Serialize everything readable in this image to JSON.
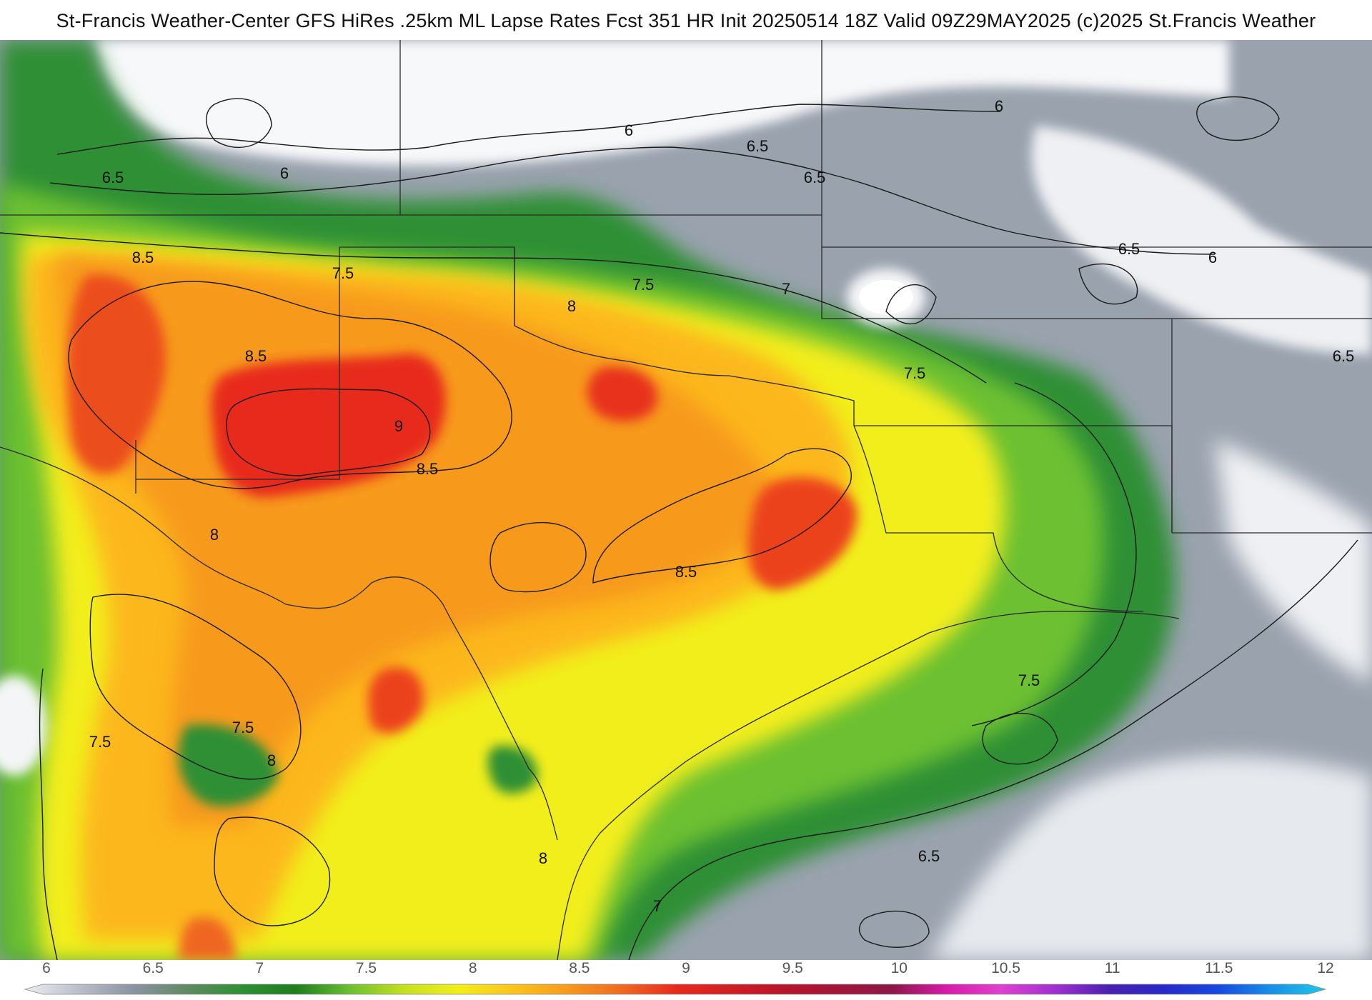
{
  "title": "St-Francis Weather-Center GFS HiRes .25km ML Lapse Rates  Fcst 351 HR Init 20250514 18Z  Valid 09Z29MAY2025    (c)2025 St.Francis Weather",
  "map": {
    "field": "ML Lapse Rates",
    "contour_labels": [
      {
        "id": "c1",
        "text": "6.5"
      },
      {
        "id": "c2",
        "text": "6"
      },
      {
        "id": "c3",
        "text": "6"
      },
      {
        "id": "c4",
        "text": "6.5"
      },
      {
        "id": "c5",
        "text": "6.5"
      },
      {
        "id": "c6",
        "text": "6"
      },
      {
        "id": "c7",
        "text": "6.5"
      },
      {
        "id": "c8",
        "text": "6"
      },
      {
        "id": "c9",
        "text": "6.5"
      },
      {
        "id": "c10",
        "text": "8.5"
      },
      {
        "id": "c11",
        "text": "7.5"
      },
      {
        "id": "c12",
        "text": "7.5"
      },
      {
        "id": "c13",
        "text": "8"
      },
      {
        "id": "c14",
        "text": "7"
      },
      {
        "id": "c15",
        "text": "8.5"
      },
      {
        "id": "c16",
        "text": "9"
      },
      {
        "id": "c17",
        "text": "8.5"
      },
      {
        "id": "c18",
        "text": "7.5"
      },
      {
        "id": "c19",
        "text": "8"
      },
      {
        "id": "c20",
        "text": "8.5"
      },
      {
        "id": "c21",
        "text": "7.5"
      },
      {
        "id": "c22",
        "text": "7.5"
      },
      {
        "id": "c23",
        "text": "7.5"
      },
      {
        "id": "c24",
        "text": "8"
      },
      {
        "id": "c25",
        "text": "8"
      },
      {
        "id": "c26",
        "text": "7"
      },
      {
        "id": "c27",
        "text": "6.5"
      }
    ]
  },
  "colorbar": {
    "ticks": [
      "6",
      "6.5",
      "7",
      "7.5",
      "8",
      "8.5",
      "9",
      "9.5",
      "10",
      "10.5",
      "11",
      "11.5",
      "12"
    ],
    "min": 6,
    "max": 12,
    "stops": [
      {
        "value": 6.0,
        "color": "#eceef2"
      },
      {
        "value": 6.25,
        "color": "#b9bec9"
      },
      {
        "value": 6.5,
        "color": "#8a93a2"
      },
      {
        "value": 6.75,
        "color": "#5f8a62"
      },
      {
        "value": 7.0,
        "color": "#2f8f34"
      },
      {
        "value": 7.25,
        "color": "#1f7d1f"
      },
      {
        "value": 7.5,
        "color": "#6cc030"
      },
      {
        "value": 7.75,
        "color": "#c6e020"
      },
      {
        "value": 8.0,
        "color": "#f2ee1a"
      },
      {
        "value": 8.25,
        "color": "#fcc41c"
      },
      {
        "value": 8.5,
        "color": "#f79a1e"
      },
      {
        "value": 8.75,
        "color": "#f06a20"
      },
      {
        "value": 9.0,
        "color": "#e82a1e"
      },
      {
        "value": 9.5,
        "color": "#b8142a"
      },
      {
        "value": 10.0,
        "color": "#8c1848"
      },
      {
        "value": 10.25,
        "color": "#d81aa8"
      },
      {
        "value": 10.5,
        "color": "#e040d0"
      },
      {
        "value": 10.75,
        "color": "#a030d0"
      },
      {
        "value": 11.0,
        "color": "#4a20b0"
      },
      {
        "value": 11.25,
        "color": "#2828c8"
      },
      {
        "value": 11.5,
        "color": "#1848e0"
      },
      {
        "value": 11.75,
        "color": "#1890e8"
      },
      {
        "value": 12.0,
        "color": "#20c8e8"
      }
    ]
  }
}
